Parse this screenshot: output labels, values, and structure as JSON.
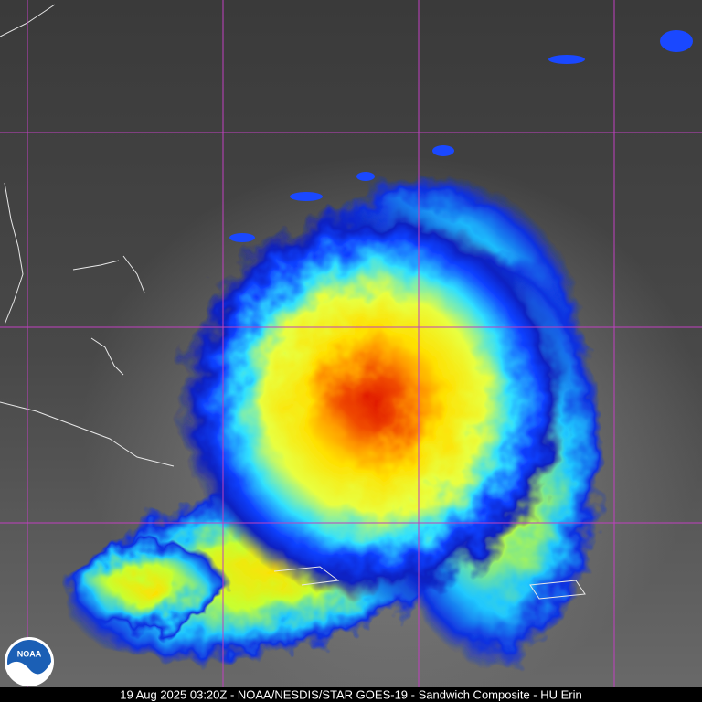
{
  "caption": "19 Aug 2025 03:20Z - NOAA/NESDIS/STAR GOES-19 - Sandwich Composite - HU Erin",
  "logo": {
    "text": "NOAA"
  }
}
